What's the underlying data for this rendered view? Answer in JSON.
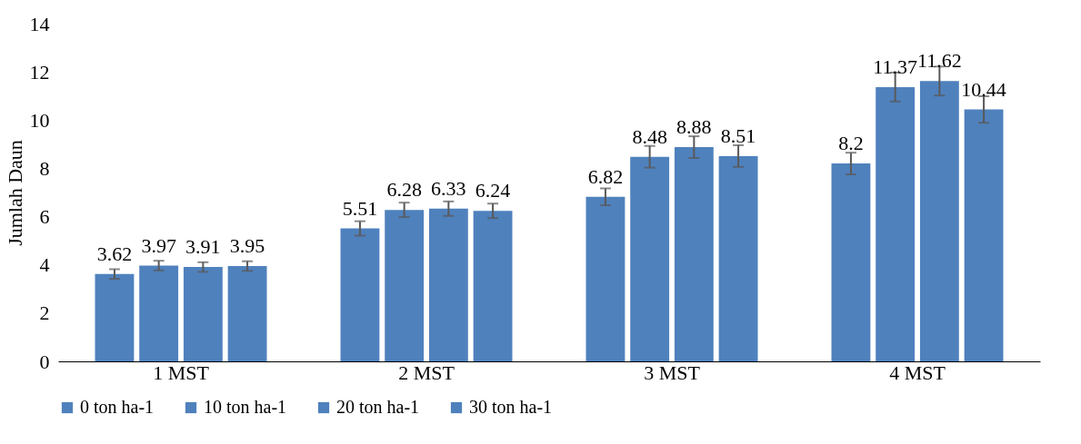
{
  "chart_data": {
    "type": "bar",
    "ylabel": "Jumlah Daun",
    "categories": [
      "1 MST",
      "2 MST",
      "3 MST",
      "4 MST"
    ],
    "series": [
      {
        "name": "0 ton ha-1",
        "color": "#4f81bd",
        "values": [
          3.62,
          5.51,
          6.82,
          8.2
        ],
        "errors": [
          0.2,
          0.3,
          0.35,
          0.45
        ]
      },
      {
        "name": "10 ton ha-1",
        "color": "#4f81bd",
        "values": [
          3.97,
          6.28,
          8.48,
          11.37
        ],
        "errors": [
          0.2,
          0.3,
          0.45,
          0.6
        ]
      },
      {
        "name": "20 ton ha-1",
        "color": "#4f81bd",
        "values": [
          3.91,
          6.33,
          8.88,
          11.62
        ],
        "errors": [
          0.2,
          0.3,
          0.45,
          0.6
        ]
      },
      {
        "name": "30 ton ha-1",
        "color": "#4f81bd",
        "values": [
          3.95,
          6.24,
          8.51,
          10.44
        ],
        "errors": [
          0.2,
          0.3,
          0.45,
          0.55
        ]
      }
    ],
    "ylim": [
      0,
      14
    ],
    "yticks": [
      0,
      2,
      4,
      6,
      8,
      10,
      12,
      14
    ],
    "data_labels": true,
    "grid": false,
    "legend": "bottom"
  }
}
